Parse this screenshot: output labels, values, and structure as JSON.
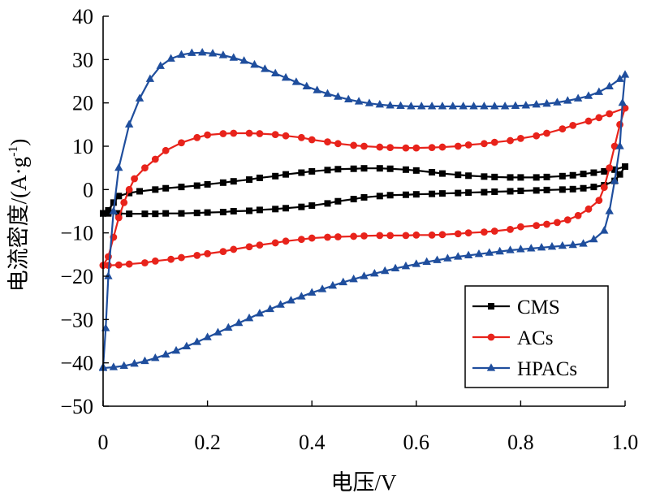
{
  "chart_data": {
    "type": "line",
    "title": "",
    "xlabel": "电压/V",
    "ylabel_main": "电流密度/(A·g",
    "ylabel_sup": "-1",
    "ylabel_close": ")",
    "xlim": [
      0,
      1.0
    ],
    "ylim": [
      -50,
      40
    ],
    "x_ticks": [
      0,
      0.2,
      0.4,
      0.6,
      0.8,
      1.0
    ],
    "x_tick_labels": [
      "0",
      "0.2",
      "0.4",
      "0.6",
      "0.8",
      "1.0"
    ],
    "y_ticks": [
      40,
      30,
      20,
      10,
      0,
      -10,
      -20,
      -30,
      -40,
      -50
    ],
    "y_tick_labels": [
      "40",
      "30",
      "20",
      "10",
      "0",
      "−10",
      "−20",
      "−30",
      "−40",
      "−50"
    ],
    "grid": false,
    "legend_position": "bottom-right",
    "series": [
      {
        "name": "CMS",
        "color": "#000000",
        "marker": "square",
        "points": [
          [
            0.0,
            -5.5
          ],
          [
            0.01,
            -4.8
          ],
          [
            0.02,
            -3.0
          ],
          [
            0.03,
            -1.5
          ],
          [
            0.05,
            -0.8
          ],
          [
            0.07,
            -0.4
          ],
          [
            0.1,
            0.0
          ],
          [
            0.12,
            0.3
          ],
          [
            0.15,
            0.6
          ],
          [
            0.18,
            0.9
          ],
          [
            0.2,
            1.2
          ],
          [
            0.23,
            1.6
          ],
          [
            0.25,
            1.9
          ],
          [
            0.28,
            2.3
          ],
          [
            0.3,
            2.7
          ],
          [
            0.33,
            3.1
          ],
          [
            0.35,
            3.5
          ],
          [
            0.38,
            3.9
          ],
          [
            0.4,
            4.2
          ],
          [
            0.43,
            4.5
          ],
          [
            0.45,
            4.7
          ],
          [
            0.48,
            4.8
          ],
          [
            0.5,
            4.9
          ],
          [
            0.53,
            4.9
          ],
          [
            0.55,
            4.8
          ],
          [
            0.58,
            4.6
          ],
          [
            0.6,
            4.4
          ],
          [
            0.63,
            4.0
          ],
          [
            0.65,
            3.7
          ],
          [
            0.68,
            3.4
          ],
          [
            0.7,
            3.2
          ],
          [
            0.73,
            3.0
          ],
          [
            0.75,
            2.9
          ],
          [
            0.78,
            2.8
          ],
          [
            0.8,
            2.8
          ],
          [
            0.83,
            2.8
          ],
          [
            0.85,
            2.9
          ],
          [
            0.88,
            3.1
          ],
          [
            0.9,
            3.3
          ],
          [
            0.92,
            3.6
          ],
          [
            0.94,
            3.9
          ],
          [
            0.96,
            4.2
          ],
          [
            0.98,
            4.6
          ],
          [
            1.0,
            5.3
          ],
          [
            0.99,
            3.5
          ],
          [
            0.98,
            2.0
          ],
          [
            0.96,
            1.0
          ],
          [
            0.94,
            0.6
          ],
          [
            0.92,
            0.3
          ],
          [
            0.9,
            0.1
          ],
          [
            0.88,
            0.0
          ],
          [
            0.85,
            -0.1
          ],
          [
            0.83,
            -0.2
          ],
          [
            0.8,
            -0.3
          ],
          [
            0.78,
            -0.4
          ],
          [
            0.75,
            -0.5
          ],
          [
            0.73,
            -0.6
          ],
          [
            0.7,
            -0.7
          ],
          [
            0.68,
            -0.8
          ],
          [
            0.65,
            -0.9
          ],
          [
            0.63,
            -1.0
          ],
          [
            0.6,
            -1.1
          ],
          [
            0.58,
            -1.2
          ],
          [
            0.55,
            -1.3
          ],
          [
            0.53,
            -1.5
          ],
          [
            0.5,
            -1.8
          ],
          [
            0.48,
            -2.2
          ],
          [
            0.45,
            -2.7
          ],
          [
            0.43,
            -3.2
          ],
          [
            0.4,
            -3.7
          ],
          [
            0.38,
            -4.0
          ],
          [
            0.35,
            -4.3
          ],
          [
            0.33,
            -4.5
          ],
          [
            0.3,
            -4.7
          ],
          [
            0.28,
            -4.9
          ],
          [
            0.25,
            -5.0
          ],
          [
            0.23,
            -5.2
          ],
          [
            0.2,
            -5.3
          ],
          [
            0.18,
            -5.4
          ],
          [
            0.15,
            -5.5
          ],
          [
            0.12,
            -5.5
          ],
          [
            0.1,
            -5.6
          ],
          [
            0.08,
            -5.6
          ],
          [
            0.05,
            -5.6
          ],
          [
            0.03,
            -5.5
          ],
          [
            0.01,
            -5.5
          ],
          [
            0.0,
            -5.5
          ]
        ]
      },
      {
        "name": "ACs",
        "color": "#e8231b",
        "marker": "circle",
        "points": [
          [
            0.0,
            -17.5
          ],
          [
            0.01,
            -15.5
          ],
          [
            0.02,
            -11.0
          ],
          [
            0.03,
            -6.5
          ],
          [
            0.04,
            -3.0
          ],
          [
            0.05,
            0.0
          ],
          [
            0.06,
            2.5
          ],
          [
            0.08,
            5.0
          ],
          [
            0.1,
            7.0
          ],
          [
            0.12,
            9.0
          ],
          [
            0.15,
            10.8
          ],
          [
            0.18,
            12.0
          ],
          [
            0.2,
            12.6
          ],
          [
            0.23,
            12.9
          ],
          [
            0.25,
            13.0
          ],
          [
            0.28,
            13.0
          ],
          [
            0.3,
            12.9
          ],
          [
            0.33,
            12.7
          ],
          [
            0.35,
            12.4
          ],
          [
            0.38,
            12.0
          ],
          [
            0.4,
            11.5
          ],
          [
            0.43,
            11.0
          ],
          [
            0.45,
            10.6
          ],
          [
            0.48,
            10.2
          ],
          [
            0.5,
            10.0
          ],
          [
            0.53,
            9.8
          ],
          [
            0.55,
            9.7
          ],
          [
            0.58,
            9.6
          ],
          [
            0.6,
            9.6
          ],
          [
            0.63,
            9.7
          ],
          [
            0.65,
            9.8
          ],
          [
            0.68,
            10.0
          ],
          [
            0.7,
            10.3
          ],
          [
            0.73,
            10.6
          ],
          [
            0.75,
            10.9
          ],
          [
            0.78,
            11.3
          ],
          [
            0.8,
            11.8
          ],
          [
            0.83,
            12.4
          ],
          [
            0.85,
            13.0
          ],
          [
            0.88,
            14.0
          ],
          [
            0.9,
            14.8
          ],
          [
            0.93,
            15.8
          ],
          [
            0.95,
            16.6
          ],
          [
            0.97,
            17.5
          ],
          [
            1.0,
            18.8
          ],
          [
            0.99,
            15.0
          ],
          [
            0.98,
            10.0
          ],
          [
            0.97,
            5.0
          ],
          [
            0.96,
            0.5
          ],
          [
            0.95,
            -2.5
          ],
          [
            0.93,
            -4.5
          ],
          [
            0.91,
            -6.0
          ],
          [
            0.89,
            -7.0
          ],
          [
            0.87,
            -7.6
          ],
          [
            0.85,
            -8.0
          ],
          [
            0.83,
            -8.3
          ],
          [
            0.8,
            -8.6
          ],
          [
            0.78,
            -9.2
          ],
          [
            0.75,
            -9.6
          ],
          [
            0.73,
            -9.8
          ],
          [
            0.7,
            -10.0
          ],
          [
            0.68,
            -10.2
          ],
          [
            0.65,
            -10.4
          ],
          [
            0.63,
            -10.5
          ],
          [
            0.6,
            -10.5
          ],
          [
            0.58,
            -10.6
          ],
          [
            0.55,
            -10.6
          ],
          [
            0.53,
            -10.6
          ],
          [
            0.5,
            -10.7
          ],
          [
            0.48,
            -10.8
          ],
          [
            0.45,
            -10.9
          ],
          [
            0.43,
            -11.0
          ],
          [
            0.4,
            -11.2
          ],
          [
            0.38,
            -11.5
          ],
          [
            0.35,
            -11.9
          ],
          [
            0.33,
            -12.3
          ],
          [
            0.3,
            -12.8
          ],
          [
            0.28,
            -13.2
          ],
          [
            0.25,
            -13.8
          ],
          [
            0.23,
            -14.3
          ],
          [
            0.2,
            -14.8
          ],
          [
            0.18,
            -15.2
          ],
          [
            0.15,
            -15.7
          ],
          [
            0.13,
            -16.1
          ],
          [
            0.1,
            -16.5
          ],
          [
            0.08,
            -16.9
          ],
          [
            0.05,
            -17.2
          ],
          [
            0.03,
            -17.4
          ],
          [
            0.01,
            -17.5
          ],
          [
            0.0,
            -17.5
          ]
        ]
      },
      {
        "name": "HPACs",
        "color": "#1f4e9d",
        "marker": "triangle",
        "points": [
          [
            0.0,
            -41.0
          ],
          [
            0.005,
            -32.0
          ],
          [
            0.01,
            -20.0
          ],
          [
            0.02,
            -5.0
          ],
          [
            0.03,
            5.0
          ],
          [
            0.05,
            15.0
          ],
          [
            0.07,
            21.0
          ],
          [
            0.09,
            25.5
          ],
          [
            0.11,
            28.5
          ],
          [
            0.13,
            30.2
          ],
          [
            0.15,
            31.1
          ],
          [
            0.17,
            31.5
          ],
          [
            0.19,
            31.6
          ],
          [
            0.21,
            31.4
          ],
          [
            0.23,
            31.0
          ],
          [
            0.25,
            30.4
          ],
          [
            0.27,
            29.7
          ],
          [
            0.29,
            28.8
          ],
          [
            0.31,
            27.8
          ],
          [
            0.33,
            26.8
          ],
          [
            0.35,
            25.8
          ],
          [
            0.37,
            24.8
          ],
          [
            0.39,
            23.8
          ],
          [
            0.41,
            22.9
          ],
          [
            0.43,
            22.1
          ],
          [
            0.45,
            21.4
          ],
          [
            0.47,
            20.8
          ],
          [
            0.49,
            20.3
          ],
          [
            0.51,
            19.9
          ],
          [
            0.53,
            19.6
          ],
          [
            0.55,
            19.4
          ],
          [
            0.57,
            19.3
          ],
          [
            0.59,
            19.2
          ],
          [
            0.61,
            19.2
          ],
          [
            0.63,
            19.2
          ],
          [
            0.65,
            19.2
          ],
          [
            0.67,
            19.2
          ],
          [
            0.69,
            19.2
          ],
          [
            0.71,
            19.2
          ],
          [
            0.73,
            19.2
          ],
          [
            0.75,
            19.2
          ],
          [
            0.77,
            19.2
          ],
          [
            0.79,
            19.3
          ],
          [
            0.81,
            19.4
          ],
          [
            0.83,
            19.6
          ],
          [
            0.85,
            19.8
          ],
          [
            0.87,
            20.1
          ],
          [
            0.89,
            20.5
          ],
          [
            0.91,
            21.0
          ],
          [
            0.93,
            21.6
          ],
          [
            0.95,
            22.5
          ],
          [
            0.97,
            23.8
          ],
          [
            0.99,
            25.5
          ],
          [
            1.0,
            26.5
          ],
          [
            0.995,
            20.0
          ],
          [
            0.99,
            10.0
          ],
          [
            0.98,
            2.0
          ],
          [
            0.97,
            -5.0
          ],
          [
            0.96,
            -9.5
          ],
          [
            0.94,
            -11.5
          ],
          [
            0.92,
            -12.5
          ],
          [
            0.9,
            -12.8
          ],
          [
            0.88,
            -13.0
          ],
          [
            0.86,
            -13.2
          ],
          [
            0.84,
            -13.4
          ],
          [
            0.82,
            -13.6
          ],
          [
            0.8,
            -13.8
          ],
          [
            0.78,
            -14.0
          ],
          [
            0.76,
            -14.3
          ],
          [
            0.74,
            -14.6
          ],
          [
            0.72,
            -14.9
          ],
          [
            0.7,
            -15.2
          ],
          [
            0.68,
            -15.5
          ],
          [
            0.66,
            -15.9
          ],
          [
            0.64,
            -16.3
          ],
          [
            0.62,
            -16.7
          ],
          [
            0.6,
            -17.2
          ],
          [
            0.58,
            -17.7
          ],
          [
            0.56,
            -18.2
          ],
          [
            0.54,
            -18.8
          ],
          [
            0.52,
            -19.4
          ],
          [
            0.5,
            -20.0
          ],
          [
            0.48,
            -20.7
          ],
          [
            0.46,
            -21.4
          ],
          [
            0.44,
            -22.2
          ],
          [
            0.42,
            -23.0
          ],
          [
            0.4,
            -23.8
          ],
          [
            0.38,
            -24.7
          ],
          [
            0.36,
            -25.6
          ],
          [
            0.34,
            -26.6
          ],
          [
            0.32,
            -27.6
          ],
          [
            0.3,
            -28.6
          ],
          [
            0.28,
            -29.7
          ],
          [
            0.26,
            -30.8
          ],
          [
            0.24,
            -31.9
          ],
          [
            0.22,
            -33.0
          ],
          [
            0.2,
            -34.1
          ],
          [
            0.18,
            -35.2
          ],
          [
            0.16,
            -36.2
          ],
          [
            0.14,
            -37.2
          ],
          [
            0.12,
            -38.1
          ],
          [
            0.1,
            -38.9
          ],
          [
            0.08,
            -39.6
          ],
          [
            0.06,
            -40.2
          ],
          [
            0.04,
            -40.7
          ],
          [
            0.02,
            -41.0
          ],
          [
            0.0,
            -41.2
          ]
        ]
      }
    ]
  }
}
